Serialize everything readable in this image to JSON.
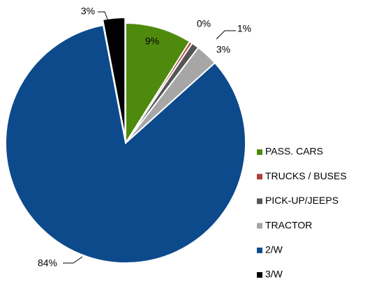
{
  "chart_data": {
    "type": "pie",
    "categories": [
      "PASS. CARS",
      "TRUCKS / BUSES",
      "PICK-UP/JEEPS",
      "TRACTOR",
      "2/W",
      "3/W"
    ],
    "values": [
      9,
      0.4,
      1,
      3,
      84,
      3
    ],
    "value_labels": [
      "9%",
      "0%",
      "1%",
      "3%",
      "84%",
      "3%"
    ],
    "colors": [
      "#4e8a0e",
      "#b0403a",
      "#555555",
      "#a6a6a6",
      "#0d4a8c",
      "#000000"
    ],
    "legend": "right"
  }
}
